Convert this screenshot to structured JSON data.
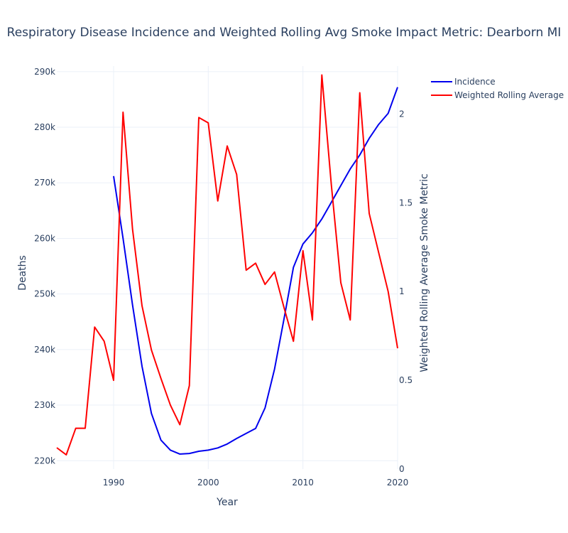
{
  "chart_data": {
    "type": "line",
    "title": "Respiratory Disease Incidence and Weighted Rolling Avg Smoke Impact Metric: Dearborn MI",
    "xlabel": "Year",
    "ylabel": "Deaths",
    "y2label": "Weighted Rolling Average Smoke Metric",
    "xlim": [
      1984,
      2020
    ],
    "ylim": [
      218500,
      291000
    ],
    "y2lim": [
      0,
      2.27
    ],
    "xticks": [
      1990,
      2000,
      2010,
      2020
    ],
    "xtick_labels": [
      "1990",
      "2000",
      "2010",
      "2020"
    ],
    "yticks": [
      220000,
      230000,
      240000,
      250000,
      260000,
      270000,
      280000,
      290000
    ],
    "ytick_labels": [
      "220k",
      "230k",
      "240k",
      "250k",
      "260k",
      "270k",
      "280k",
      "290k"
    ],
    "y2ticks": [
      0,
      0.5,
      1,
      1.5,
      2
    ],
    "y2tick_labels": [
      "0",
      "0.5",
      "1",
      "1.5",
      "2"
    ],
    "grid": true,
    "legend_position": "top-right",
    "series": [
      {
        "name": "Incidence",
        "color": "#0000ee",
        "axis": "y",
        "x": [
          1990,
          1991,
          1992,
          1993,
          1994,
          1995,
          1996,
          1997,
          1998,
          1999,
          2000,
          2001,
          2002,
          2003,
          2004,
          2005,
          2006,
          2007,
          2008,
          2009,
          2010,
          2011,
          2012,
          2013,
          2014,
          2015,
          2016,
          2017,
          2018,
          2019,
          2020
        ],
        "values": [
          271200,
          260000,
          248000,
          237000,
          228500,
          223700,
          221900,
          221200,
          221300,
          221700,
          221900,
          222300,
          223000,
          224000,
          224900,
          225800,
          229500,
          236500,
          245500,
          254800,
          259000,
          261000,
          263500,
          266500,
          269500,
          272500,
          275000,
          278000,
          280500,
          282500,
          287200
        ]
      },
      {
        "name": "Weighted Rolling Average",
        "color": "#ff0000",
        "axis": "y2",
        "x": [
          1984,
          1985,
          1986,
          1987,
          1988,
          1989,
          1990,
          1991,
          1992,
          1993,
          1994,
          1995,
          1996,
          1997,
          1998,
          1999,
          2000,
          2001,
          2002,
          2003,
          2004,
          2005,
          2006,
          2007,
          2008,
          2009,
          2010,
          2011,
          2012,
          2013,
          2014,
          2015,
          2016,
          2017,
          2018,
          2019,
          2020
        ],
        "values": [
          0.12,
          0.08,
          0.23,
          0.23,
          0.8,
          0.72,
          0.5,
          2.01,
          1.35,
          0.92,
          0.67,
          0.51,
          0.36,
          0.25,
          0.47,
          1.98,
          1.95,
          1.51,
          1.82,
          1.66,
          1.12,
          1.16,
          1.04,
          1.11,
          0.91,
          0.72,
          1.23,
          0.84,
          2.22,
          1.6,
          1.05,
          0.84,
          2.12,
          1.44,
          1.22,
          1.0,
          0.68
        ]
      }
    ]
  }
}
